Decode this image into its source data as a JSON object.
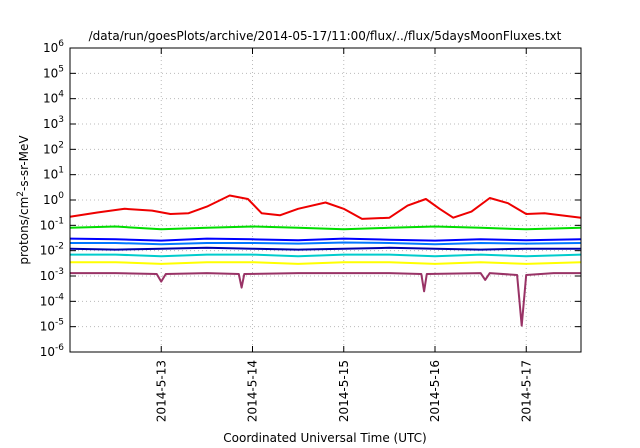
{
  "chart_data": {
    "type": "line",
    "title": "/data/run/goesPlots/archive/2014-05-17/11:00/flux/../flux/5daysMoonFluxes.txt",
    "xlabel": "Coordinated Universal Time (UTC)",
    "ylabel": {
      "base": "protons/cm",
      "sup": "2",
      "rest": "-s-sr-MeV"
    },
    "y_scale": "log",
    "ylim": [
      1e-06,
      1000000.0
    ],
    "y_ticks": [
      {
        "exp": "-6",
        "value": 1e-06
      },
      {
        "exp": "-5",
        "value": 1e-05
      },
      {
        "exp": "-4",
        "value": 0.0001
      },
      {
        "exp": "-3",
        "value": 0.001
      },
      {
        "exp": "-2",
        "value": 0.01
      },
      {
        "exp": "-1",
        "value": 0.1
      },
      {
        "exp": "0",
        "value": 1
      },
      {
        "exp": "1",
        "value": 10
      },
      {
        "exp": "2",
        "value": 100
      },
      {
        "exp": "3",
        "value": 1000
      },
      {
        "exp": "4",
        "value": 10000
      },
      {
        "exp": "5",
        "value": 100000
      },
      {
        "exp": "6",
        "value": 1000000
      }
    ],
    "y_tick_base": "10",
    "x_unit": "days",
    "xlim": [
      12.0,
      17.6
    ],
    "x_ticks": [
      {
        "label": "2014-5-13",
        "value": 13
      },
      {
        "label": "2014-5-14",
        "value": 14
      },
      {
        "label": "2014-5-15",
        "value": 15
      },
      {
        "label": "2014-5-16",
        "value": 16
      },
      {
        "label": "2014-5-17",
        "value": 17
      }
    ],
    "grid": true,
    "legend": false,
    "series": [
      {
        "color": "#ee0000",
        "x": [
          12.0,
          12.3,
          12.6,
          12.9,
          13.1,
          13.3,
          13.5,
          13.75,
          13.95,
          14.1,
          14.3,
          14.5,
          14.8,
          15.0,
          15.2,
          15.5,
          15.7,
          15.9,
          16.05,
          16.2,
          16.4,
          16.6,
          16.8,
          17.0,
          17.2,
          17.6
        ],
        "values": [
          0.22,
          0.32,
          0.45,
          0.38,
          0.28,
          0.3,
          0.55,
          1.5,
          1.1,
          0.3,
          0.25,
          0.45,
          0.8,
          0.45,
          0.18,
          0.2,
          0.6,
          1.1,
          0.45,
          0.2,
          0.35,
          1.2,
          0.75,
          0.28,
          0.3,
          0.2
        ]
      },
      {
        "color": "#00dd00",
        "x": [
          12.0,
          12.5,
          13.0,
          13.5,
          14.0,
          14.5,
          15.0,
          15.5,
          16.0,
          16.5,
          17.0,
          17.6
        ],
        "values": [
          0.08,
          0.09,
          0.07,
          0.08,
          0.09,
          0.08,
          0.07,
          0.08,
          0.09,
          0.08,
          0.07,
          0.08
        ]
      },
      {
        "color": "#0000ff",
        "x": [
          12.0,
          12.5,
          13.0,
          13.5,
          14.0,
          14.5,
          15.0,
          15.5,
          16.0,
          16.5,
          17.0,
          17.6
        ],
        "values": [
          0.03,
          0.028,
          0.025,
          0.03,
          0.028,
          0.026,
          0.03,
          0.027,
          0.025,
          0.028,
          0.026,
          0.028
        ]
      },
      {
        "color": "#0077ff",
        "x": [
          12.0,
          12.5,
          13.0,
          13.5,
          14.0,
          14.5,
          15.0,
          15.5,
          16.0,
          16.5,
          17.0,
          17.6
        ],
        "values": [
          0.02,
          0.02,
          0.018,
          0.02,
          0.02,
          0.019,
          0.021,
          0.02,
          0.018,
          0.02,
          0.019,
          0.02
        ]
      },
      {
        "color": "#0000aa",
        "x": [
          12.0,
          12.5,
          13.0,
          13.5,
          14.0,
          14.5,
          15.0,
          15.5,
          16.0,
          16.5,
          17.0,
          17.6
        ],
        "values": [
          0.012,
          0.011,
          0.012,
          0.013,
          0.012,
          0.011,
          0.012,
          0.013,
          0.012,
          0.011,
          0.012,
          0.012
        ]
      },
      {
        "color": "#00cccc",
        "x": [
          12.0,
          12.5,
          13.0,
          13.5,
          14.0,
          14.5,
          15.0,
          15.5,
          16.0,
          16.5,
          17.0,
          17.6
        ],
        "values": [
          0.007,
          0.007,
          0.006,
          0.007,
          0.007,
          0.006,
          0.007,
          0.007,
          0.006,
          0.007,
          0.006,
          0.007
        ]
      },
      {
        "color": "#ffff00",
        "x": [
          12.0,
          12.5,
          13.0,
          13.5,
          14.0,
          14.5,
          15.0,
          15.5,
          16.0,
          16.5,
          17.0,
          17.6
        ],
        "values": [
          0.0035,
          0.0035,
          0.003,
          0.0035,
          0.0035,
          0.003,
          0.0035,
          0.0035,
          0.003,
          0.0035,
          0.003,
          0.0035
        ]
      },
      {
        "color": "#993366",
        "x": [
          12.0,
          12.5,
          12.95,
          13.0,
          13.05,
          13.5,
          13.85,
          13.88,
          13.91,
          14.5,
          15.0,
          15.5,
          15.85,
          15.88,
          15.91,
          16.5,
          16.55,
          16.6,
          16.9,
          16.95,
          17.0,
          17.3,
          17.6
        ],
        "values": [
          0.0013,
          0.0013,
          0.0012,
          0.0006,
          0.0012,
          0.0013,
          0.0012,
          0.00035,
          0.0012,
          0.0013,
          0.0013,
          0.0013,
          0.0012,
          0.00025,
          0.0012,
          0.0013,
          0.0007,
          0.0013,
          0.0011,
          1.1e-05,
          0.0011,
          0.0013,
          0.0013
        ]
      }
    ]
  }
}
